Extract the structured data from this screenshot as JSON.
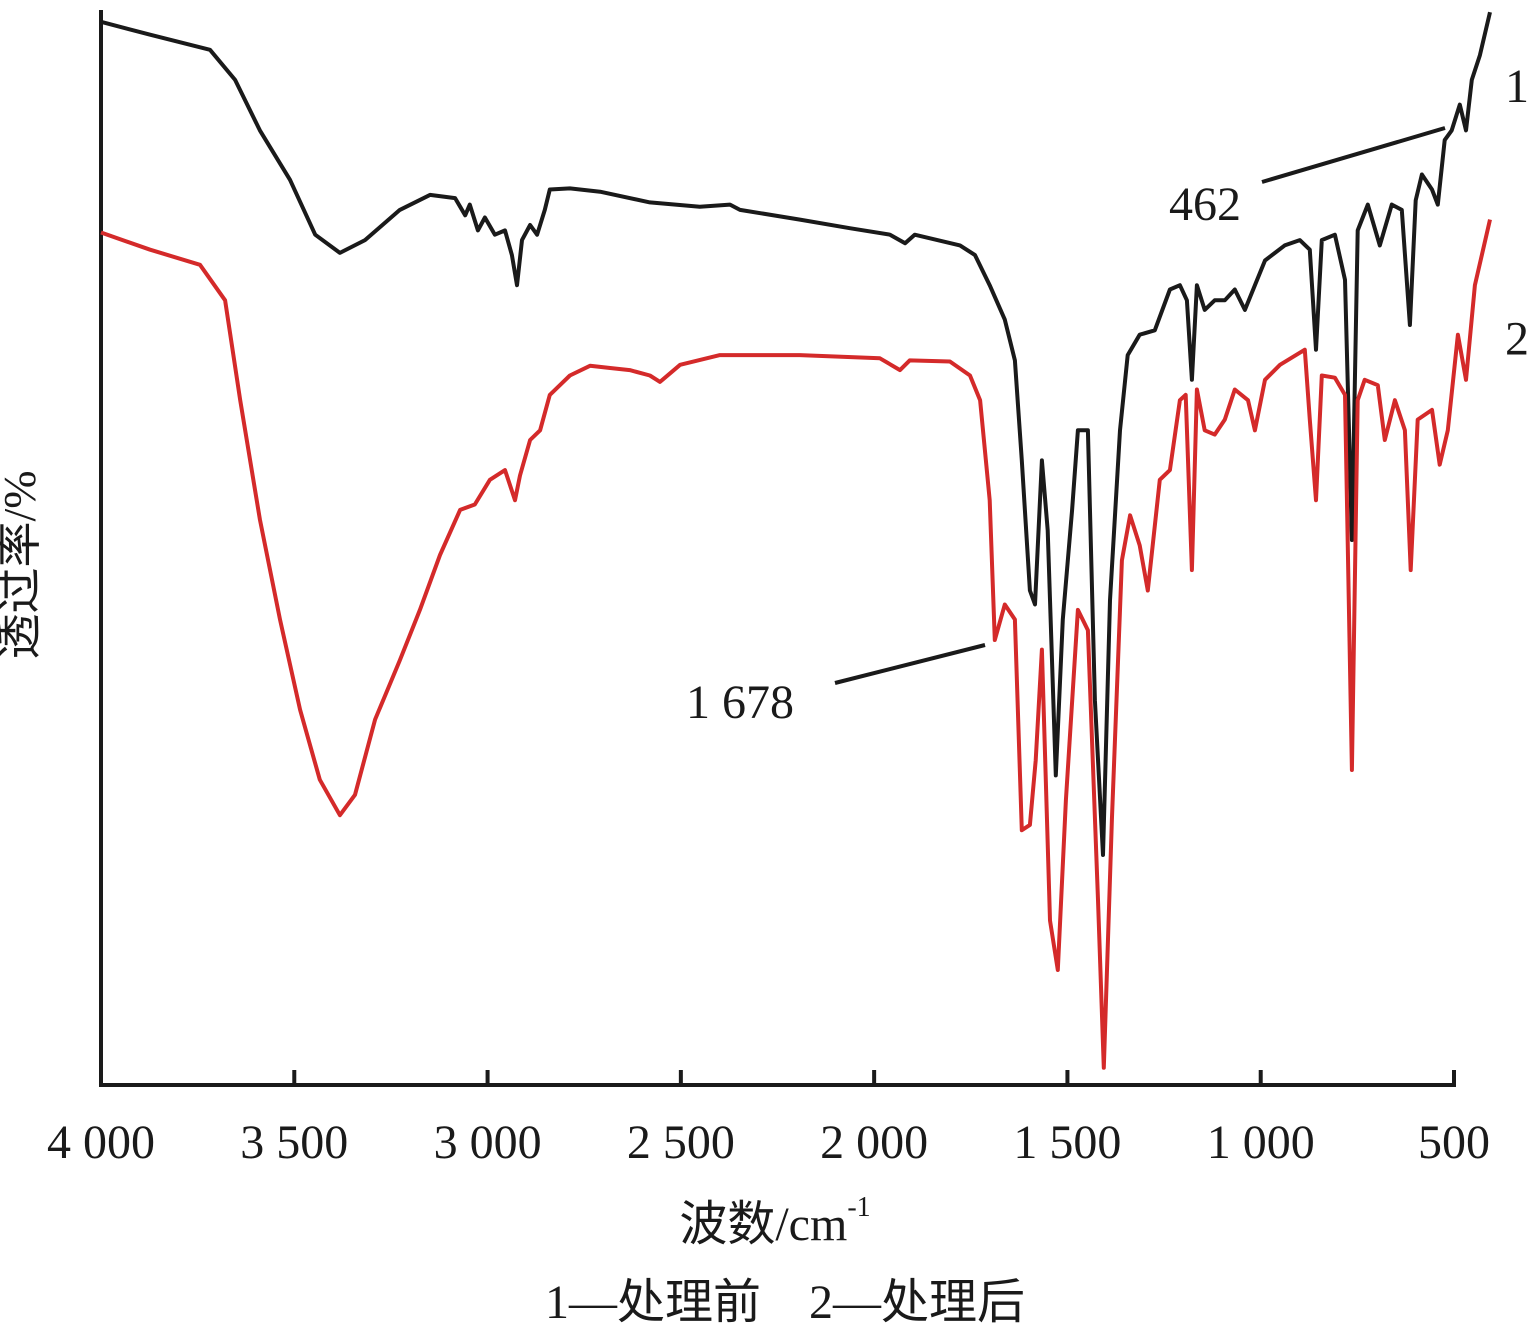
{
  "chart_data": {
    "type": "line",
    "xlabel": {
      "text": "波数/cm",
      "sup": "-1"
    },
    "ylabel": "透过率/%",
    "caption": "1—处理前　2—处理后",
    "annotations": [
      {
        "text": "462"
      },
      {
        "text": "1 678"
      }
    ],
    "xlim": [
      4000,
      500
    ],
    "ylim": [
      0,
      100
    ],
    "xticks": [
      {
        "value": 4000,
        "label": "4 000"
      },
      {
        "value": 3500,
        "label": "3 500"
      },
      {
        "value": 3000,
        "label": "3 000"
      },
      {
        "value": 2500,
        "label": "2 500"
      },
      {
        "value": 2000,
        "label": "2 000"
      },
      {
        "value": 1500,
        "label": "1 500"
      },
      {
        "value": 1000,
        "label": "1 000"
      },
      500
    ],
    "series": [
      {
        "name": "1",
        "color": "#1a1a1a",
        "x": [
          4000,
          3873,
          3718,
          3653,
          3589,
          3511,
          3446,
          3382,
          3317,
          3227,
          3149,
          3084,
          3058,
          3046,
          3025,
          3007,
          2981,
          2955,
          2937,
          2924,
          2911,
          2890,
          2872,
          2852,
          2839,
          2787,
          2709,
          2580,
          2451,
          2373,
          2347,
          2192,
          2063,
          1959,
          1920,
          1895,
          1778,
          1739,
          1701,
          1662,
          1636,
          1618,
          1597,
          1584,
          1566,
          1551,
          1530,
          1512,
          1488,
          1473,
          1447,
          1429,
          1408,
          1390,
          1364,
          1344,
          1313,
          1274,
          1235,
          1209,
          1191,
          1178,
          1165,
          1145,
          1119,
          1093,
          1067,
          1041,
          1015,
          989,
          938,
          899,
          873,
          857,
          842,
          808,
          782,
          764,
          749,
          723,
          692,
          661,
          635,
          614,
          599,
          583,
          557,
          542,
          524,
          506,
          485,
          469,
          454,
          433,
          407
        ],
        "values": [
          98.9,
          97.7,
          96.3,
          93.5,
          88.8,
          84.2,
          79.1,
          77.4,
          78.6,
          81.4,
          82.8,
          82.5,
          80.9,
          81.9,
          79.5,
          80.7,
          79.1,
          79.5,
          77.2,
          74.4,
          78.6,
          80.0,
          79.1,
          81.4,
          83.3,
          83.4,
          83.1,
          82.1,
          81.7,
          81.9,
          81.4,
          80.5,
          79.7,
          79.1,
          78.3,
          79.1,
          78.1,
          77.2,
          74.4,
          71.2,
          67.4,
          58.1,
          46.0,
          44.7,
          58.1,
          51.6,
          28.8,
          43.3,
          53.5,
          60.9,
          60.9,
          35.8,
          21.4,
          45.1,
          60.9,
          67.9,
          69.8,
          70.2,
          74.0,
          74.4,
          73.0,
          65.6,
          74.4,
          72.1,
          73.0,
          73.0,
          74.0,
          72.1,
          74.4,
          76.7,
          78.1,
          78.6,
          77.7,
          68.4,
          78.6,
          79.1,
          74.9,
          50.7,
          79.5,
          81.9,
          78.1,
          81.9,
          81.4,
          70.7,
          82.3,
          84.7,
          83.3,
          81.9,
          87.9,
          88.8,
          91.2,
          88.8,
          93.5,
          95.8,
          99.8
        ]
      },
      {
        "name": "2",
        "color": "#d42a2a",
        "x": [
          4000,
          3873,
          3744,
          3679,
          3640,
          3589,
          3537,
          3485,
          3434,
          3382,
          3343,
          3291,
          3227,
          3175,
          3123,
          3071,
          3033,
          2994,
          2955,
          2929,
          2916,
          2890,
          2864,
          2839,
          2787,
          2735,
          2683,
          2632,
          2580,
          2554,
          2502,
          2399,
          2192,
          1985,
          1933,
          1908,
          1804,
          1752,
          1726,
          1701,
          1688,
          1662,
          1636,
          1618,
          1597,
          1582,
          1566,
          1545,
          1525,
          1504,
          1473,
          1447,
          1421,
          1406,
          1385,
          1359,
          1338,
          1313,
          1292,
          1261,
          1235,
          1209,
          1194,
          1178,
          1165,
          1145,
          1119,
          1093,
          1067,
          1033,
          1015,
          989,
          950,
          886,
          873,
          857,
          842,
          808,
          782,
          764,
          749,
          731,
          697,
          679,
          653,
          627,
          612,
          594,
          557,
          537,
          516,
          490,
          469,
          446,
          407
        ],
        "values": [
          79.3,
          77.7,
          76.3,
          73.0,
          63.7,
          52.6,
          43.3,
          34.9,
          28.4,
          25.1,
          27.0,
          34.0,
          39.5,
          44.2,
          49.3,
          53.5,
          54.0,
          56.3,
          57.2,
          54.4,
          56.7,
          60.0,
          60.9,
          64.2,
          66.0,
          66.9,
          66.7,
          66.5,
          66.0,
          65.4,
          67.0,
          67.9,
          67.9,
          67.6,
          66.5,
          67.4,
          67.3,
          66.0,
          63.7,
          54.4,
          41.4,
          44.7,
          43.3,
          23.7,
          24.2,
          30.2,
          40.5,
          15.3,
          10.7,
          26.5,
          44.2,
          42.3,
          17.2,
          1.6,
          24.7,
          48.8,
          53.0,
          50.2,
          46.0,
          56.3,
          57.2,
          63.7,
          64.2,
          47.9,
          64.7,
          60.9,
          60.5,
          61.9,
          64.7,
          63.7,
          60.9,
          65.6,
          67.0,
          68.4,
          61.9,
          54.4,
          66.0,
          65.8,
          64.2,
          29.3,
          63.7,
          65.6,
          65.1,
          60.0,
          63.7,
          60.9,
          47.9,
          61.9,
          62.8,
          57.7,
          60.9,
          69.8,
          65.6,
          74.4,
          80.5
        ]
      }
    ]
  }
}
